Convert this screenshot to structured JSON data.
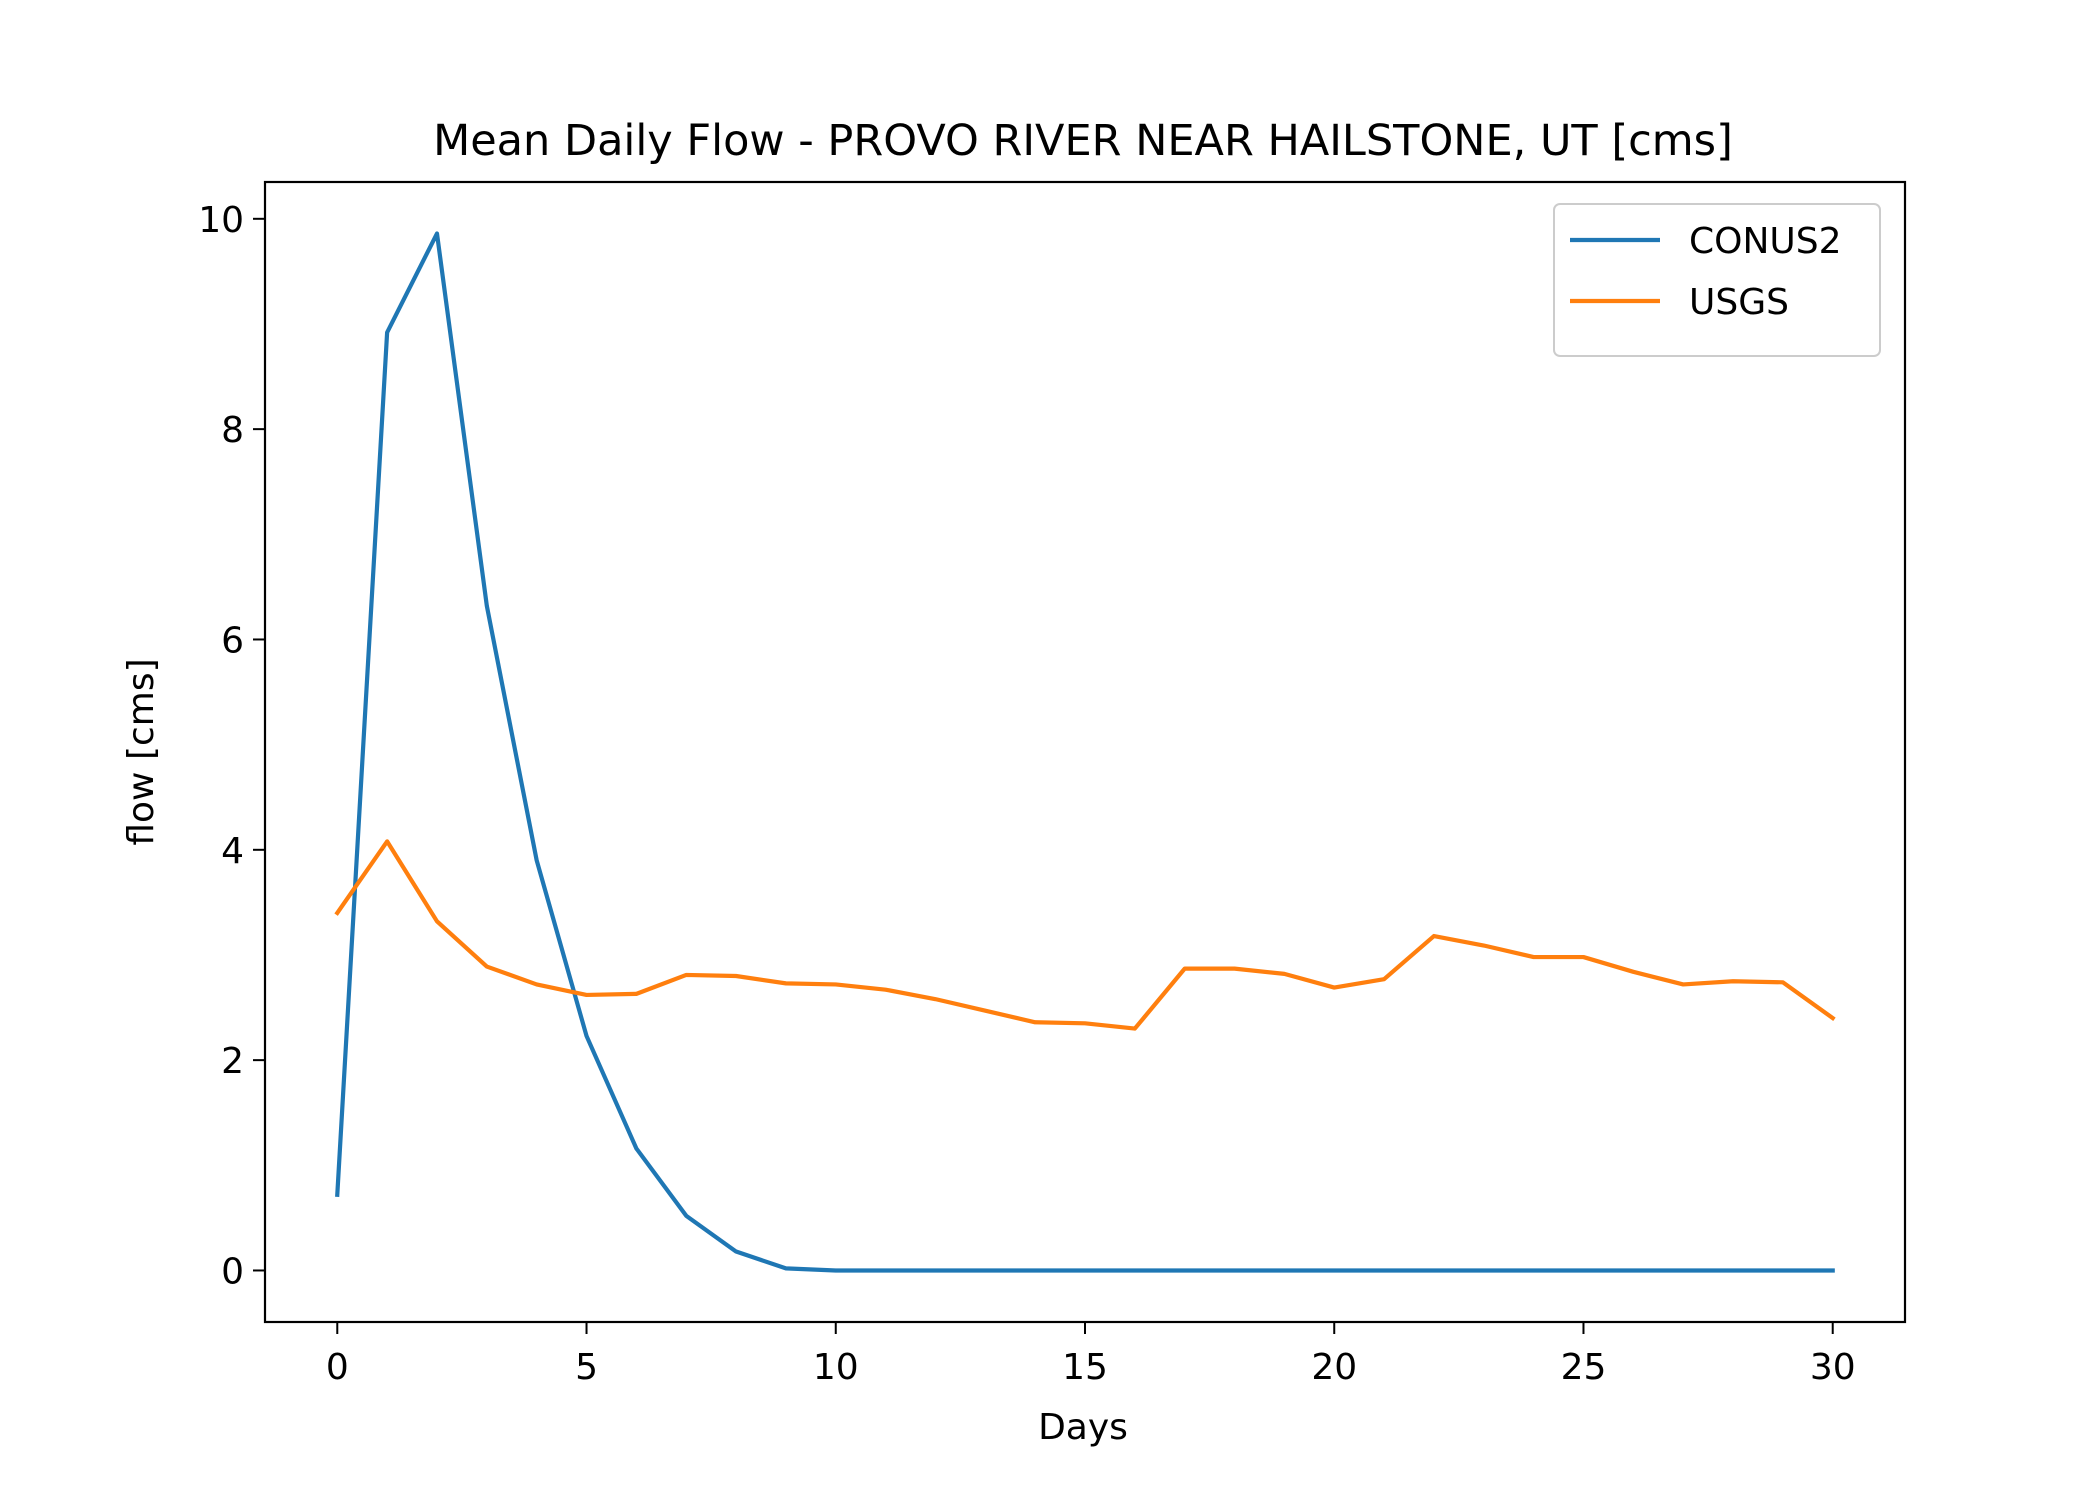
{
  "chart_data": {
    "type": "line",
    "title": "Mean Daily Flow - PROVO RIVER NEAR HAILSTONE, UT [cms]",
    "xlabel": "Days",
    "ylabel": "flow [cms]",
    "xlim": [
      -1.45,
      31.45
    ],
    "ylim": [
      -0.49,
      10.35
    ],
    "xticks": [
      0,
      5,
      10,
      15,
      20,
      25,
      30
    ],
    "yticks": [
      0,
      2,
      4,
      6,
      8,
      10
    ],
    "grid": false,
    "legend": "top-right",
    "x": [
      0,
      1,
      2,
      3,
      4,
      5,
      6,
      7,
      8,
      9,
      10,
      11,
      12,
      13,
      14,
      15,
      16,
      17,
      18,
      19,
      20,
      21,
      22,
      23,
      24,
      25,
      26,
      27,
      28,
      29,
      30
    ],
    "series": [
      {
        "name": "CONUS2",
        "color": "#1f77b4",
        "values": [
          0.72,
          8.92,
          9.86,
          6.32,
          3.9,
          2.23,
          1.16,
          0.52,
          0.18,
          0.02,
          0.0,
          0.0,
          0.0,
          0.0,
          0.0,
          0.0,
          0.0,
          0.0,
          0.0,
          0.0,
          0.0,
          0.0,
          0.0,
          0.0,
          0.0,
          0.0,
          0.0,
          0.0,
          0.0,
          0.0,
          0.0
        ]
      },
      {
        "name": "USGS",
        "color": "#ff7f0e",
        "values": [
          3.4,
          4.08,
          3.32,
          2.89,
          2.72,
          2.62,
          2.63,
          2.81,
          2.8,
          2.73,
          2.72,
          2.67,
          2.58,
          2.47,
          2.36,
          2.35,
          2.3,
          2.87,
          2.87,
          2.82,
          2.69,
          2.77,
          3.18,
          3.09,
          2.98,
          2.98,
          2.84,
          2.72,
          2.75,
          2.74,
          2.4
        ]
      }
    ]
  }
}
